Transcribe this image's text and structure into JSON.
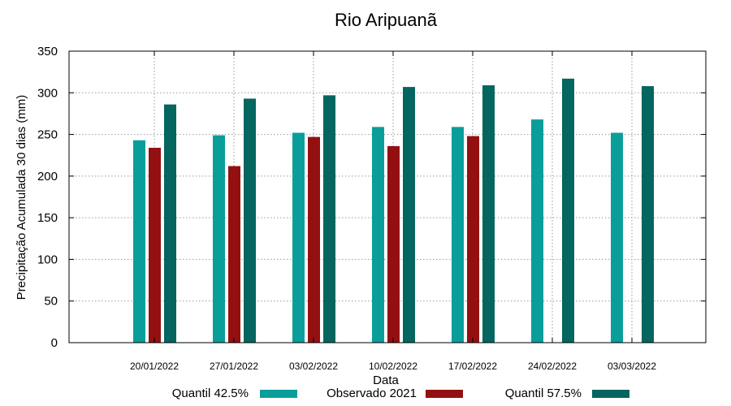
{
  "chart_data": {
    "type": "bar",
    "title": "Rio Aripuanã",
    "xlabel": "Data",
    "ylabel": "Precipitação Acumulada 30 dias (mm)",
    "ylim": [
      0,
      350
    ],
    "yticks": [
      "0",
      "50",
      "100",
      "150",
      "200",
      "250",
      "300",
      "350"
    ],
    "grid": true,
    "legend_position": "bottom",
    "categories": [
      "20/01/2022",
      "27/01/2022",
      "03/02/2022",
      "10/02/2022",
      "17/02/2022",
      "24/02/2022",
      "03/03/2022"
    ],
    "series": [
      {
        "name": "Quantil 42.5%",
        "color": "#0a9e9a",
        "values": [
          243,
          249,
          252,
          259,
          259,
          268,
          252
        ]
      },
      {
        "name": "Observado 2021",
        "color": "#941010",
        "values": [
          234,
          212,
          247,
          236,
          248,
          null,
          null
        ]
      },
      {
        "name": "Quantil 57.5%",
        "color": "#05655f",
        "values": [
          286,
          293,
          297,
          307,
          309,
          317,
          308
        ]
      }
    ]
  }
}
